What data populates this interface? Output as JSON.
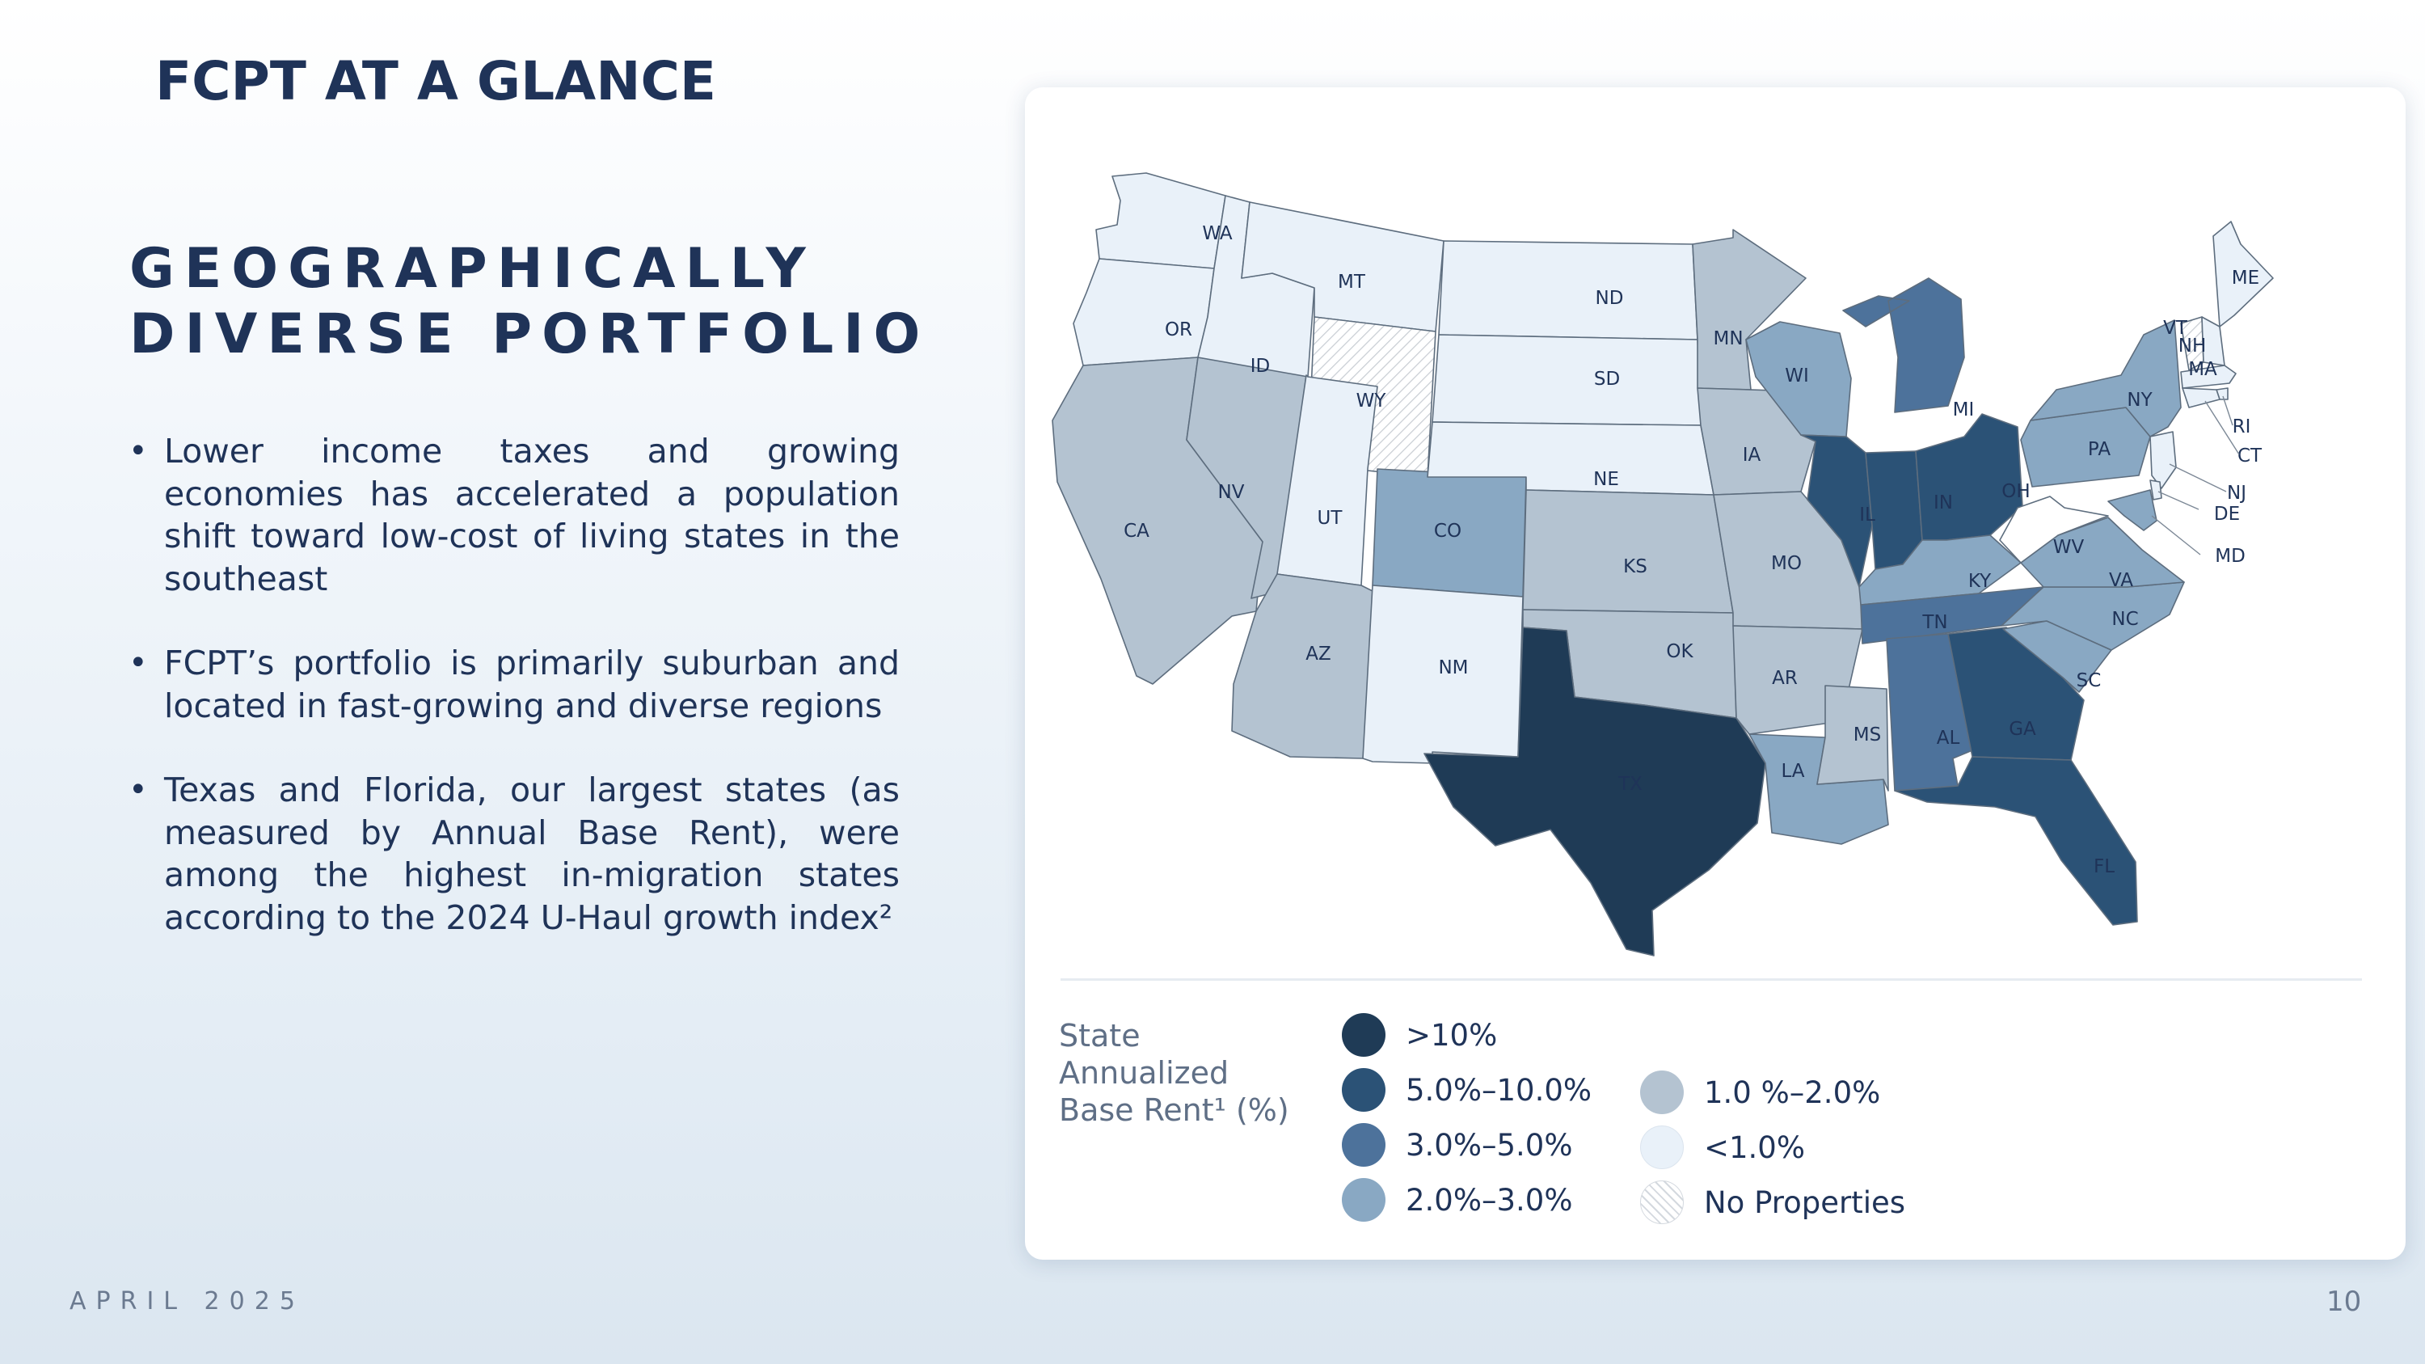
{
  "header": {
    "title": "FCPT AT A GLANCE"
  },
  "section": {
    "title_line1": "GEOGRAPHICALLY",
    "title_line2": "DIVERSE PORTFOLIO"
  },
  "bullets": [
    "Lower income taxes and growing economies has accelerated a population shift toward low-cost of living states in the southeast",
    "FCPT’s portfolio is primarily suburban and located in fast-growing and diverse regions",
    "Texas and Florida, our largest states (as measured by Annual Base Rent), were among the highest in-migration states according to the 2024 U-Haul growth index²"
  ],
  "footer": {
    "date": "APRIL 2025",
    "page_number": "10"
  },
  "colors": {
    "gt10": "#1f3b56",
    "p5to10": "#2b5276",
    "p3to5": "#4d729b",
    "p2to3": "#89a8c3",
    "p1to2": "#b4c3d1",
    "lt1": "#e9f1f9",
    "none": "#ffffff",
    "border": "#5d6d7e"
  },
  "legend": {
    "title_line1": "State",
    "title_line2": "Annualized",
    "title_line3": "Base Rent¹ (%)",
    "items": [
      {
        "label": ">10%",
        "color_key": "gt10"
      },
      {
        "label": "5.0%–10.0%",
        "color_key": "p5to10"
      },
      {
        "label": "3.0%–5.0%",
        "color_key": "p3to5"
      },
      {
        "label": "2.0%–3.0%",
        "color_key": "p2to3"
      },
      {
        "label": "1.0 %–2.0%",
        "color_key": "p1to2"
      },
      {
        "label": "<1.0%",
        "color_key": "lt1"
      },
      {
        "label": "No Properties",
        "color_key": "none"
      }
    ]
  },
  "states": [
    {
      "abbr": "WA",
      "category": "lt1"
    },
    {
      "abbr": "OR",
      "category": "lt1"
    },
    {
      "abbr": "CA",
      "category": "p1to2"
    },
    {
      "abbr": "NV",
      "category": "p1to2"
    },
    {
      "abbr": "ID",
      "category": "lt1"
    },
    {
      "abbr": "MT",
      "category": "lt1"
    },
    {
      "abbr": "WY",
      "category": "none"
    },
    {
      "abbr": "UT",
      "category": "lt1"
    },
    {
      "abbr": "AZ",
      "category": "p1to2"
    },
    {
      "abbr": "CO",
      "category": "p2to3"
    },
    {
      "abbr": "NM",
      "category": "lt1"
    },
    {
      "abbr": "ND",
      "category": "lt1"
    },
    {
      "abbr": "SD",
      "category": "lt1"
    },
    {
      "abbr": "NE",
      "category": "lt1"
    },
    {
      "abbr": "KS",
      "category": "p1to2"
    },
    {
      "abbr": "OK",
      "category": "p1to2"
    },
    {
      "abbr": "TX",
      "category": "gt10"
    },
    {
      "abbr": "MN",
      "category": "p1to2"
    },
    {
      "abbr": "IA",
      "category": "p1to2"
    },
    {
      "abbr": "MO",
      "category": "p1to2"
    },
    {
      "abbr": "AR",
      "category": "p1to2"
    },
    {
      "abbr": "LA",
      "category": "p2to3"
    },
    {
      "abbr": "WI",
      "category": "p2to3"
    },
    {
      "abbr": "IL",
      "category": "p5to10"
    },
    {
      "abbr": "MI",
      "category": "p3to5"
    },
    {
      "abbr": "IN",
      "category": "p5to10"
    },
    {
      "abbr": "OH",
      "category": "p5to10"
    },
    {
      "abbr": "KY",
      "category": "p2to3"
    },
    {
      "abbr": "TN",
      "category": "p3to5"
    },
    {
      "abbr": "MS",
      "category": "p1to2"
    },
    {
      "abbr": "AL",
      "category": "p3to5"
    },
    {
      "abbr": "GA",
      "category": "p5to10"
    },
    {
      "abbr": "FL",
      "category": "p5to10"
    },
    {
      "abbr": "SC",
      "category": "p2to3"
    },
    {
      "abbr": "NC",
      "category": "p2to3"
    },
    {
      "abbr": "VA",
      "category": "p2to3"
    },
    {
      "abbr": "WV",
      "category": "none"
    },
    {
      "abbr": "PA",
      "category": "p2to3"
    },
    {
      "abbr": "NY",
      "category": "p2to3"
    },
    {
      "abbr": "ME",
      "category": "lt1"
    },
    {
      "abbr": "VT",
      "category": "none"
    },
    {
      "abbr": "NH",
      "category": "lt1"
    },
    {
      "abbr": "MA",
      "category": "lt1"
    },
    {
      "abbr": "RI",
      "category": "lt1"
    },
    {
      "abbr": "CT",
      "category": "lt1"
    },
    {
      "abbr": "NJ",
      "category": "lt1"
    },
    {
      "abbr": "DE",
      "category": "lt1"
    },
    {
      "abbr": "MD",
      "category": "p2to3"
    }
  ]
}
